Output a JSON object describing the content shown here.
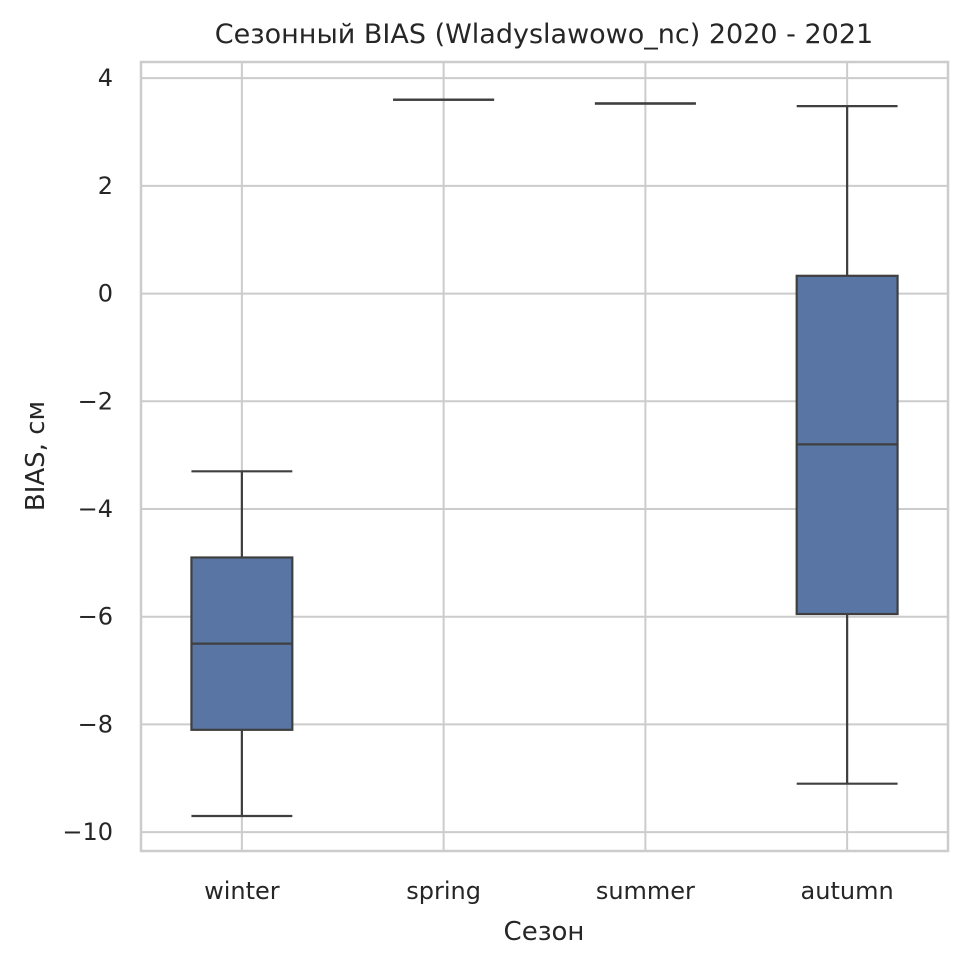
{
  "chart_data": {
    "type": "box",
    "title": "Сезонный BIAS (Wladyslawowo_nc) 2020 - 2021",
    "xlabel": "Сезон",
    "ylabel": "BIAS, см",
    "ylim": [
      -10.35,
      4.3
    ],
    "yticks": [
      4,
      2,
      0,
      -2,
      -4,
      -6,
      -8,
      -10
    ],
    "ytick_labels": [
      "4",
      "2",
      "0",
      "−2",
      "−4",
      "−6",
      "−8",
      "−10"
    ],
    "grid": true,
    "box_color": "#5975a4",
    "line_color": "#3f3f3f",
    "grid_color": "#cccccc",
    "categories": [
      "winter",
      "spring",
      "summer",
      "autumn"
    ],
    "boxes": [
      {
        "category": "winter",
        "whisker_low": -9.7,
        "q1": -8.1,
        "median": -6.5,
        "q3": -4.9,
        "whisker_high": -3.3
      },
      {
        "category": "spring",
        "whisker_low": 3.6,
        "q1": 3.6,
        "median": 3.6,
        "q3": 3.6,
        "whisker_high": 3.6
      },
      {
        "category": "summer",
        "whisker_low": 3.53,
        "q1": 3.53,
        "median": 3.53,
        "q3": 3.53,
        "whisker_high": 3.53
      },
      {
        "category": "autumn",
        "whisker_low": -9.1,
        "q1": -5.95,
        "median": -2.8,
        "q3": 0.33,
        "whisker_high": 3.48
      }
    ]
  }
}
